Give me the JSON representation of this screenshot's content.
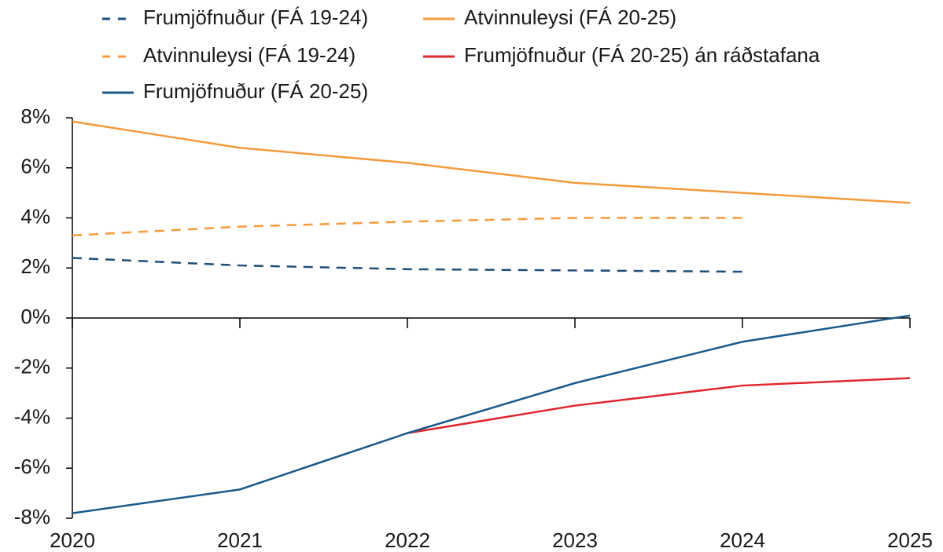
{
  "chart_data": {
    "type": "line",
    "x": [
      2020,
      2021,
      2022,
      2023,
      2024,
      2025
    ],
    "xlim": [
      2020,
      2025
    ],
    "xticks": [
      2020,
      2021,
      2022,
      2023,
      2024,
      2025
    ],
    "ylim": [
      -8,
      8
    ],
    "yticks": [
      {
        "value": 8,
        "label": "8%"
      },
      {
        "value": 6,
        "label": "6%"
      },
      {
        "value": 4,
        "label": "4%"
      },
      {
        "value": 2,
        "label": "2%"
      },
      {
        "value": 0,
        "label": "0%"
      },
      {
        "value": -2,
        "label": "-2%"
      },
      {
        "value": -4,
        "label": "-4%"
      },
      {
        "value": -6,
        "label": "-6%"
      },
      {
        "value": -8,
        "label": "-8%"
      }
    ],
    "series": [
      {
        "name": "Frumjöfnuður (FÁ 19-24)",
        "color": "#1f4e79",
        "dashed": true,
        "values": [
          2.4,
          2.1,
          1.95,
          1.9,
          1.85,
          null
        ]
      },
      {
        "name": "Atvinnuleysi (FÁ 20-25)",
        "color": "#f39a3c",
        "dashed": false,
        "values": [
          7.85,
          6.8,
          6.2,
          5.4,
          5.0,
          4.6
        ]
      },
      {
        "name": "Atvinnuleysi (FÁ 19-24)",
        "color": "#f39a3c",
        "dashed": true,
        "values": [
          3.3,
          3.65,
          3.85,
          4.0,
          4.0,
          null
        ]
      },
      {
        "name": "Frumjöfnuður (FÁ 20-25) án ráðstafana",
        "color": "#e0262f",
        "dashed": false,
        "values": [
          null,
          null,
          -4.6,
          -3.5,
          -2.7,
          -2.4
        ]
      },
      {
        "name": "Frumjöfnuður (FÁ 20-25)",
        "color": "#1a5a8a",
        "dashed": false,
        "values": [
          -7.8,
          -6.85,
          -4.6,
          -2.6,
          -0.95,
          0.1
        ]
      }
    ]
  }
}
